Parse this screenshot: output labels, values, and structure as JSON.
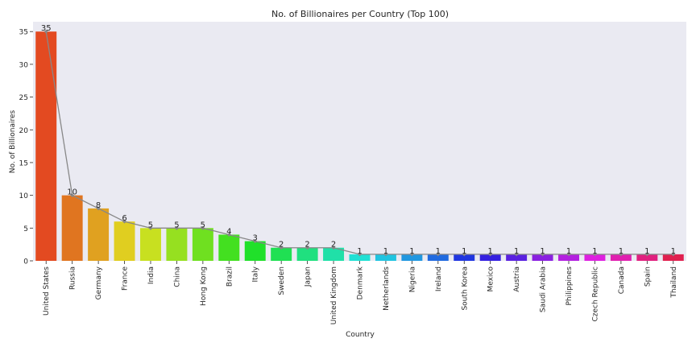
{
  "chart_data": {
    "type": "bar",
    "title": "No. of Billionaires per Country (Top 100)",
    "xlabel": "Country",
    "ylabel": "No. of Billionaires",
    "ylim": [
      0,
      36.5
    ],
    "yticks": [
      0,
      5,
      10,
      15,
      20,
      25,
      30,
      35
    ],
    "grid": false,
    "legend": "none",
    "categories": [
      "United States",
      "Russia",
      "Germany",
      "France",
      "India",
      "China",
      "Hong Kong",
      "Brazil",
      "Italy",
      "Sweden",
      "Japan",
      "United Kingdom",
      "Denmark",
      "Netherlands",
      "Nigeria",
      "Ireland",
      "South Korea",
      "Mexico",
      "Austria",
      "Saudi Arabia",
      "Philippines",
      "Czech Republic",
      "Canada",
      "Spain",
      "Thailand"
    ],
    "values": [
      35,
      10,
      8,
      6,
      5,
      5,
      5,
      4,
      3,
      2,
      2,
      2,
      1,
      1,
      1,
      1,
      1,
      1,
      1,
      1,
      1,
      1,
      1,
      1,
      1
    ],
    "bar_colors": [
      "#e34a21",
      "#e07520",
      "#e0a120",
      "#e0ce20",
      "#c8e020",
      "#96e020",
      "#6fe020",
      "#43e020",
      "#20e02a",
      "#20e053",
      "#20e07f",
      "#20e0a8",
      "#20e0d4",
      "#20c4e0",
      "#2097e0",
      "#206ae0",
      "#2036e0",
      "#3520e0",
      "#5920e0",
      "#8a20e0",
      "#b320e0",
      "#de20e0",
      "#e020b0",
      "#e0207f",
      "#e0204f"
    ],
    "overlay_line": {
      "color": "#888888",
      "values": [
        35,
        10,
        8,
        6,
        5,
        5,
        5,
        4,
        3,
        2,
        2,
        2,
        1,
        1,
        1,
        1,
        1,
        1,
        1,
        1,
        1,
        1,
        1,
        1,
        1
      ]
    },
    "plot_background": "#eaeaf2"
  }
}
